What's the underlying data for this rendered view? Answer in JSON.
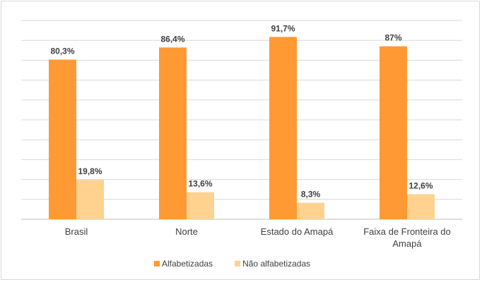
{
  "chart_data": {
    "type": "bar",
    "title": "",
    "xlabel": "",
    "ylabel": "",
    "categories": [
      "Brasil",
      "Norte",
      "Estado do Amapá",
      "Faixa de Fronteira do Amapá"
    ],
    "series": [
      {
        "name": "Alfabetizadas",
        "color": "#ff9933",
        "values": [
          80.3,
          86.4,
          91.7,
          87
        ],
        "labels": [
          "80,3%",
          "86,4%",
          "91,7%",
          "87%"
        ]
      },
      {
        "name": "Não alfabetizadas",
        "color": "#ffd28f",
        "values": [
          19.8,
          13.6,
          8.3,
          12.6
        ],
        "labels": [
          "19,8%",
          "13,6%",
          "8,3%",
          "12,6%"
        ]
      }
    ],
    "ylim": [
      0,
      100
    ],
    "grid": true,
    "legend": "bottom"
  }
}
